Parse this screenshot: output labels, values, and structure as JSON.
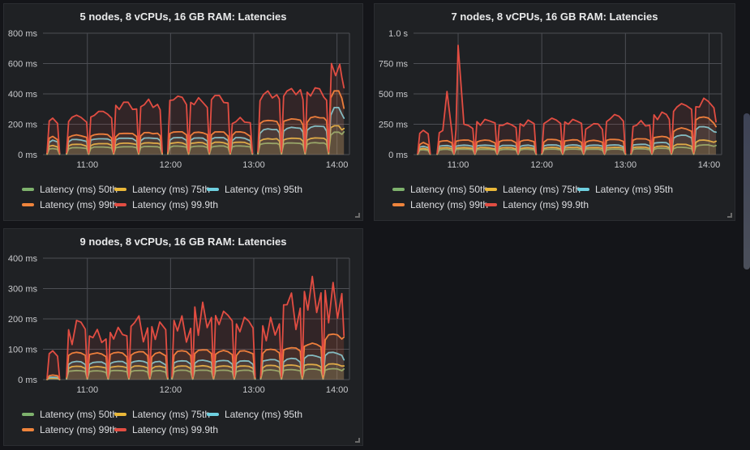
{
  "theme": {
    "page_bg": "#141519",
    "panel_bg": "#1f2124",
    "panel_border": "#2b2d31",
    "grid_color": "#4c4e54",
    "tick_text_color": "#c8c9cc",
    "title_text_color": "#e9eaeb",
    "legend_text_color": "#dcdde0",
    "scrollbar_color": "#4b4f5a"
  },
  "legend": {
    "items": [
      {
        "series": "p50",
        "label": "Latency (ms) 50th",
        "color": "#7EB26D"
      },
      {
        "series": "p75",
        "label": "Latency (ms) 75th",
        "color": "#EAB839"
      },
      {
        "series": "p95",
        "label": "Latency (ms) 95th",
        "color": "#6ED0E0"
      },
      {
        "series": "p99",
        "label": "Latency (ms) 99th",
        "color": "#EF843C"
      },
      {
        "series": "p999",
        "label": "Latency (ms) 99.9th",
        "color": "#E24D42"
      }
    ]
  },
  "chart_data": [
    {
      "type": "line",
      "title": "5 nodes, 8 vCPUs, 16 GB RAM: Latencies",
      "ylabel": "latency",
      "ylim": [
        0,
        800
      ],
      "y_ticks": [
        {
          "v": 0,
          "label": "0 ms"
        },
        {
          "v": 200,
          "label": "200 ms"
        },
        {
          "v": 400,
          "label": "400 ms"
        },
        {
          "v": 600,
          "label": "600 ms"
        },
        {
          "v": 800,
          "label": "800 ms"
        }
      ],
      "x_domain_minutes": [
        628,
        849
      ],
      "x_ticks": [
        {
          "minute": 660,
          "label": "11:00"
        },
        {
          "minute": 720,
          "label": "12:00"
        },
        {
          "minute": 780,
          "label": "13:00"
        },
        {
          "minute": 840,
          "label": "14:00"
        }
      ],
      "grid": true,
      "legend_position": "bottom-left",
      "series_order": [
        "p50",
        "p75",
        "p95",
        "p99",
        "p999"
      ],
      "red_jitter": 0.15,
      "encoding": "cycles: t=[startMinute,endMinute] of each plateau burst; levels = plateau latency (ms) per percentile series; series pinch to ~0 between cycles; gap_after=true means missing data (blank slit) until next cycle; spikes = explicit [minute, ms] peaks of 99.9th series; end = final values (ms) at right edge of data",
      "cycles": [
        {
          "t": [
            631,
            640
          ],
          "levels": {
            "p999": 240,
            "p99": 120,
            "p95": 95,
            "p75": 60,
            "p50": 40
          },
          "gap_after": true
        },
        {
          "t": [
            645,
            661
          ],
          "levels": {
            "p999": 260,
            "p99": 130,
            "p95": 100,
            "p75": 68,
            "p50": 46
          }
        },
        {
          "t": [
            661,
            679
          ],
          "levels": {
            "p999": 285,
            "p99": 135,
            "p95": 104,
            "p75": 72,
            "p50": 50
          }
        },
        {
          "t": [
            679,
            697
          ],
          "levels": {
            "p999": 345,
            "p99": 140,
            "p95": 108,
            "p75": 75,
            "p50": 52
          }
        },
        {
          "t": [
            697,
            714
          ],
          "levels": {
            "p999": 365,
            "p99": 145,
            "p95": 110,
            "p75": 78,
            "p50": 54
          },
          "gap_after": true
        },
        {
          "t": [
            718,
            733
          ],
          "levels": {
            "p999": 385,
            "p99": 150,
            "p95": 112,
            "p75": 80,
            "p50": 56
          }
        },
        {
          "t": [
            733,
            748
          ],
          "levels": {
            "p999": 375,
            "p99": 148,
            "p95": 110,
            "p75": 80,
            "p50": 56
          }
        },
        {
          "t": [
            748,
            763
          ],
          "levels": {
            "p999": 390,
            "p99": 150,
            "p95": 112,
            "p75": 82,
            "p50": 57
          }
        },
        {
          "t": [
            763,
            779
          ],
          "levels": {
            "p999": 245,
            "p99": 150,
            "p95": 112,
            "p75": 82,
            "p50": 57
          },
          "gap_after": true
        },
        {
          "t": [
            783,
            800
          ],
          "levels": {
            "p999": 420,
            "p99": 225,
            "p95": 170,
            "p75": 105,
            "p50": 75
          }
        },
        {
          "t": [
            800,
            817
          ],
          "levels": {
            "p999": 435,
            "p99": 235,
            "p95": 180,
            "p75": 108,
            "p50": 77
          }
        },
        {
          "t": [
            817,
            834
          ],
          "levels": {
            "p999": 440,
            "p99": 250,
            "p95": 188,
            "p75": 110,
            "p50": 79
          }
        },
        {
          "t": [
            834,
            845
          ],
          "levels": {
            "p999": 575,
            "p99": 420,
            "p95": 310,
            "p75": 190,
            "p50": 148
          },
          "spikes": [
            [
              836,
              600
            ],
            [
              839,
              520
            ],
            [
              842,
              595
            ]
          ],
          "end": {
            "p999": 440,
            "p99": 305,
            "p95": 240,
            "p75": 172,
            "p50": 150
          }
        }
      ]
    },
    {
      "type": "line",
      "title": "7 nodes, 8 vCPUs, 16 GB RAM: Latencies",
      "ylabel": "latency",
      "ylim": [
        0,
        1000
      ],
      "y_ticks": [
        {
          "v": 0,
          "label": "0 ms"
        },
        {
          "v": 250,
          "label": "250 ms"
        },
        {
          "v": 500,
          "label": "500 ms"
        },
        {
          "v": 750,
          "label": "750 ms"
        },
        {
          "v": 1000,
          "label": "1.0 s"
        }
      ],
      "x_domain_minutes": [
        628,
        849
      ],
      "x_ticks": [
        {
          "minute": 660,
          "label": "11:00"
        },
        {
          "minute": 720,
          "label": "12:00"
        },
        {
          "minute": 780,
          "label": "13:00"
        },
        {
          "minute": 840,
          "label": "14:00"
        }
      ],
      "grid": true,
      "legend_position": "bottom-left",
      "series_order": [
        "p50",
        "p75",
        "p95",
        "p99",
        "p999"
      ],
      "red_jitter": 0.18,
      "encoding": "cycles: t=[startMinute,endMinute] of each plateau burst; levels = plateau latency (ms) per percentile series; series pinch to ~0 between cycles; gap_after=true means missing data (blank slit) until next cycle; spikes = explicit [minute, ms] peaks of 99.9th series; end = final values (ms) at right edge of data",
      "cycles": [
        {
          "t": [
            631,
            640
          ],
          "levels": {
            "p999": 200,
            "p99": 100,
            "p95": 68,
            "p75": 52,
            "p50": 40
          },
          "gap_after": true
        },
        {
          "t": [
            645,
            657
          ],
          "levels": {
            "p999": 215,
            "p99": 115,
            "p95": 75,
            "p75": 57,
            "p50": 44
          },
          "spikes": [
            [
              652,
              520
            ]
          ]
        },
        {
          "t": [
            657,
            672
          ],
          "levels": {
            "p999": 250,
            "p99": 120,
            "p95": 78,
            "p75": 58,
            "p50": 45
          },
          "spikes": [
            [
              660,
              900
            ]
          ]
        },
        {
          "t": [
            672,
            688
          ],
          "levels": {
            "p999": 290,
            "p99": 120,
            "p95": 78,
            "p75": 58,
            "p50": 45
          }
        },
        {
          "t": [
            688,
            703
          ],
          "levels": {
            "p999": 260,
            "p99": 118,
            "p95": 76,
            "p75": 57,
            "p50": 44
          }
        },
        {
          "t": [
            703,
            716
          ],
          "levels": {
            "p999": 285,
            "p99": 120,
            "p95": 78,
            "p75": 58,
            "p50": 45
          },
          "gap_after": true
        },
        {
          "t": [
            720,
            735
          ],
          "levels": {
            "p999": 300,
            "p99": 125,
            "p95": 80,
            "p75": 60,
            "p50": 46
          }
        },
        {
          "t": [
            735,
            750
          ],
          "levels": {
            "p999": 290,
            "p99": 122,
            "p95": 80,
            "p75": 60,
            "p50": 46
          }
        },
        {
          "t": [
            750,
            765
          ],
          "levels": {
            "p999": 255,
            "p99": 118,
            "p95": 78,
            "p75": 58,
            "p50": 45
          }
        },
        {
          "t": [
            765,
            780
          ],
          "levels": {
            "p999": 330,
            "p99": 125,
            "p95": 80,
            "p75": 60,
            "p50": 46
          },
          "gap_after": true
        },
        {
          "t": [
            784,
            799
          ],
          "levels": {
            "p999": 280,
            "p99": 130,
            "p95": 85,
            "p75": 62,
            "p50": 48
          }
        },
        {
          "t": [
            799,
            813
          ],
          "levels": {
            "p999": 350,
            "p99": 150,
            "p95": 100,
            "p75": 70,
            "p50": 52
          }
        },
        {
          "t": [
            813,
            829
          ],
          "levels": {
            "p999": 420,
            "p99": 220,
            "p95": 160,
            "p75": 85,
            "p50": 60
          }
        },
        {
          "t": [
            829,
            845
          ],
          "levels": {
            "p999": 465,
            "p99": 310,
            "p95": 230,
            "p75": 120,
            "p50": 80
          },
          "end": {
            "p999": 270,
            "p99": 230,
            "p95": 185,
            "p75": 110,
            "p50": 75
          }
        }
      ]
    },
    {
      "type": "line",
      "title": "9 nodes, 8 vCPUs, 16 GB RAM: Latencies",
      "ylabel": "latency",
      "ylim": [
        0,
        400
      ],
      "y_ticks": [
        {
          "v": 0,
          "label": "0 ms"
        },
        {
          "v": 100,
          "label": "100 ms"
        },
        {
          "v": 200,
          "label": "200 ms"
        },
        {
          "v": 300,
          "label": "300 ms"
        },
        {
          "v": 400,
          "label": "400 ms"
        }
      ],
      "x_domain_minutes": [
        628,
        849
      ],
      "x_ticks": [
        {
          "minute": 660,
          "label": "11:00"
        },
        {
          "minute": 720,
          "label": "12:00"
        },
        {
          "minute": 780,
          "label": "13:00"
        },
        {
          "minute": 840,
          "label": "14:00"
        }
      ],
      "grid": true,
      "legend_position": "bottom-left",
      "series_order": [
        "p50",
        "p75",
        "p95",
        "p99",
        "p999"
      ],
      "red_jitter": 0.45,
      "encoding": "cycles: t=[startMinute,endMinute] of each plateau burst; levels = plateau latency (ms) per percentile series; series pinch to ~0 between cycles; gap_after=true means missing data (blank slit) until next cycle; spikes = explicit [minute, ms] peaks of 99.9th series; end = final values (ms) at right edge of data",
      "cycles": [
        {
          "t": [
            631,
            640
          ],
          "levels": {
            "p999": 95,
            "p99": 15,
            "p95": 8,
            "p75": 6,
            "p50": 4
          },
          "gap_after": true
        },
        {
          "t": [
            645,
            660
          ],
          "levels": {
            "p999": 195,
            "p99": 90,
            "p95": 60,
            "p75": 44,
            "p50": 30
          }
        },
        {
          "t": [
            660,
            675
          ],
          "levels": {
            "p999": 165,
            "p99": 88,
            "p95": 58,
            "p75": 43,
            "p50": 29
          }
        },
        {
          "t": [
            675,
            690
          ],
          "levels": {
            "p999": 172,
            "p99": 90,
            "p95": 60,
            "p75": 44,
            "p50": 30
          }
        },
        {
          "t": [
            690,
            705
          ],
          "levels": {
            "p999": 210,
            "p99": 92,
            "p95": 62,
            "p75": 45,
            "p50": 30
          }
        },
        {
          "t": [
            705,
            718
          ],
          "levels": {
            "p999": 190,
            "p99": 90,
            "p95": 60,
            "p75": 44,
            "p50": 30
          },
          "gap_after": true
        },
        {
          "t": [
            721,
            736
          ],
          "levels": {
            "p999": 210,
            "p99": 95,
            "p95": 62,
            "p75": 45,
            "p50": 31
          }
        },
        {
          "t": [
            736,
            751
          ],
          "levels": {
            "p999": 255,
            "p99": 98,
            "p95": 64,
            "p75": 46,
            "p50": 31
          }
        },
        {
          "t": [
            751,
            766
          ],
          "levels": {
            "p999": 225,
            "p99": 96,
            "p95": 63,
            "p75": 45,
            "p50": 31
          }
        },
        {
          "t": [
            766,
            781
          ],
          "levels": {
            "p999": 205,
            "p99": 95,
            "p95": 62,
            "p75": 45,
            "p50": 31
          },
          "gap_after": true
        },
        {
          "t": [
            785,
            800
          ],
          "levels": {
            "p999": 205,
            "p99": 100,
            "p95": 66,
            "p75": 47,
            "p50": 32
          }
        },
        {
          "t": [
            800,
            815
          ],
          "levels": {
            "p999": 285,
            "p99": 105,
            "p95": 70,
            "p75": 48,
            "p50": 33
          }
        },
        {
          "t": [
            815,
            830
          ],
          "levels": {
            "p999": 340,
            "p99": 120,
            "p95": 80,
            "p75": 50,
            "p50": 35
          }
        },
        {
          "t": [
            830,
            845
          ],
          "levels": {
            "p999": 320,
            "p99": 150,
            "p95": 90,
            "p75": 52,
            "p50": 36
          },
          "end": {
            "p999": 145,
            "p99": 140,
            "p95": 65,
            "p75": 45,
            "p50": 35
          }
        }
      ]
    }
  ]
}
